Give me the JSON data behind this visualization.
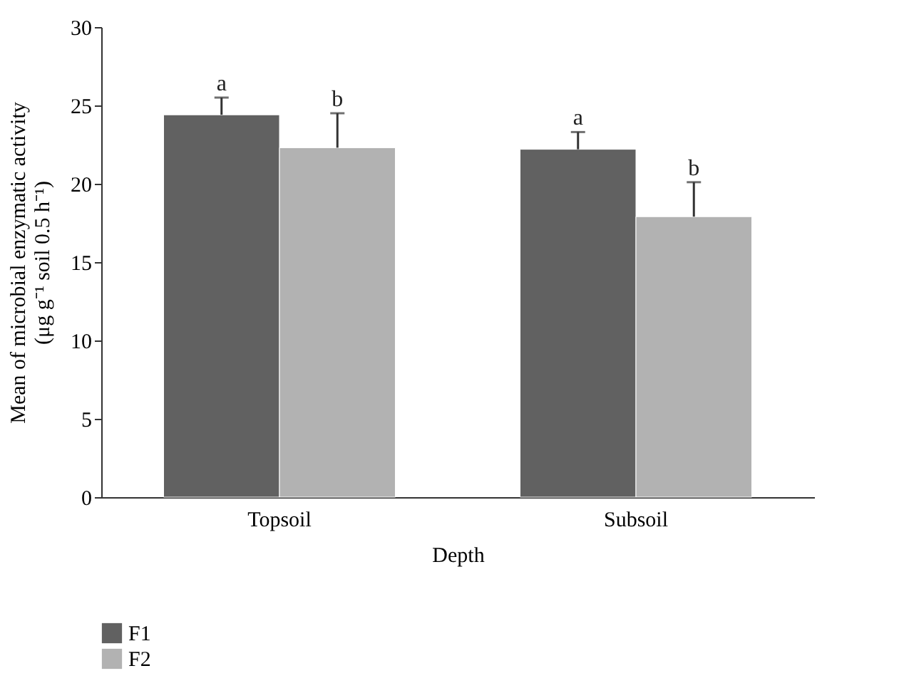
{
  "chart_data": {
    "type": "bar",
    "xlabel": "Depth",
    "ylabel": [
      "Mean of microbial enzymatic activity",
      "(μg g⁻¹ soil 0.5 h⁻¹)"
    ],
    "categories": [
      "Topsoil",
      "Subsoil"
    ],
    "series": [
      {
        "name": "F1",
        "color": "#616161",
        "values": [
          24.4,
          22.2
        ],
        "errors": [
          [
            24.4,
            25.5
          ],
          [
            22.2,
            23.3
          ]
        ]
      },
      {
        "name": "F2",
        "color": "#b2b2b2",
        "values": [
          22.3,
          17.9
        ],
        "errors": [
          [
            22.3,
            24.5
          ],
          [
            17.9,
            20.1
          ]
        ]
      }
    ],
    "annotations": [
      {
        "text": "a",
        "x": "Topsoil",
        "y": 24.4
      },
      {
        "text": "b",
        "x": "Topsoil",
        "y": 22.3
      },
      {
        "text": "a",
        "x": "Subsoil",
        "y": 22.2
      },
      {
        "text": "b",
        "x": "Subsoil",
        "y": 17.9
      }
    ],
    "ylim": [
      0,
      30
    ],
    "yticks": [
      0,
      5,
      10,
      15,
      20,
      25,
      30
    ],
    "grid": false,
    "legend": "bottom left"
  }
}
